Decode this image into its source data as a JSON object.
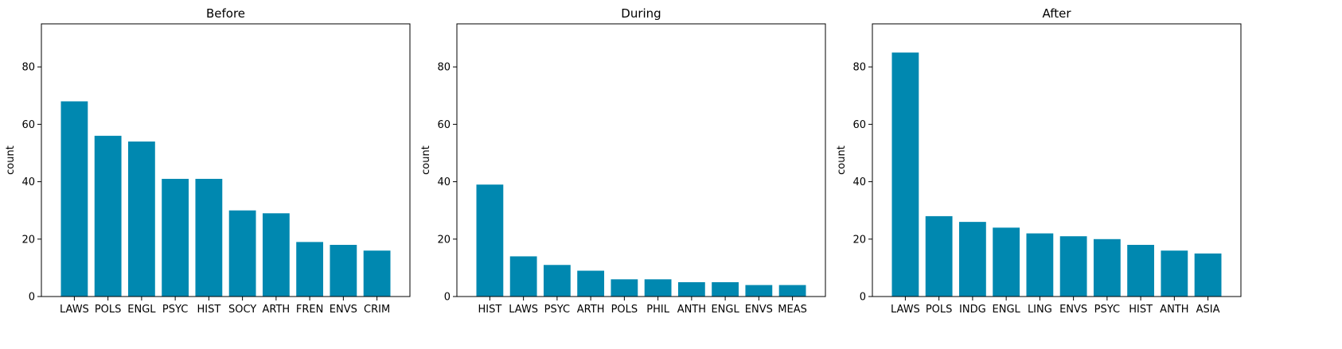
{
  "chart_data": [
    {
      "type": "bar",
      "title": "Before",
      "ylabel": "count",
      "ylim": [
        0,
        95
      ],
      "yticks": [
        0,
        20,
        40,
        60,
        80
      ],
      "color": "#0088b0",
      "categories": [
        "LAWS",
        "POLS",
        "ENGL",
        "PSYC",
        "HIST",
        "SOCY",
        "ARTH",
        "FREN",
        "ENVS",
        "CRIM"
      ],
      "values": [
        68,
        56,
        54,
        41,
        41,
        30,
        29,
        19,
        18,
        16
      ]
    },
    {
      "type": "bar",
      "title": "During",
      "ylabel": "count",
      "ylim": [
        0,
        95
      ],
      "yticks": [
        0,
        20,
        40,
        60,
        80
      ],
      "color": "#0088b0",
      "categories": [
        "HIST",
        "LAWS",
        "PSYC",
        "ARTH",
        "POLS",
        "PHIL",
        "ANTH",
        "ENGL",
        "ENVS",
        "MEAS"
      ],
      "values": [
        39,
        14,
        11,
        9,
        6,
        6,
        5,
        5,
        4,
        4
      ]
    },
    {
      "type": "bar",
      "title": "After",
      "ylabel": "count",
      "ylim": [
        0,
        95
      ],
      "yticks": [
        0,
        20,
        40,
        60,
        80
      ],
      "color": "#0088b0",
      "categories": [
        "LAWS",
        "POLS",
        "INDG",
        "ENGL",
        "LING",
        "ENVS",
        "PSYC",
        "HIST",
        "ANTH",
        "ASIA"
      ],
      "values": [
        85,
        28,
        26,
        24,
        22,
        21,
        20,
        18,
        16,
        15
      ]
    }
  ]
}
